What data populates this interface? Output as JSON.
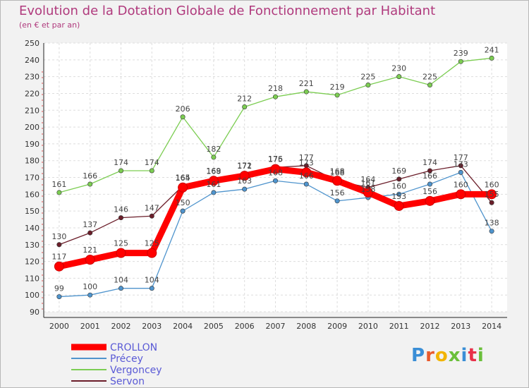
{
  "title": "Evolution de la Dotation Globale de Fonctionnement par Habitant",
  "subtitle": "(en € et par an)",
  "logo": {
    "text": "Proxiti",
    "colors": [
      "#3a8ed6",
      "#e85a2c",
      "#f2b400",
      "#6abf3a",
      "#3a8ed6",
      "#e8304a",
      "#6abf3a"
    ]
  },
  "chart_data": {
    "type": "line",
    "x": [
      "2000",
      "2001",
      "2002",
      "2003",
      "2004",
      "2005",
      "2006",
      "2007",
      "2008",
      "2009",
      "2010",
      "2011",
      "2012",
      "2013",
      "2014"
    ],
    "ylim": [
      90,
      250
    ],
    "yticks": [
      90,
      100,
      110,
      120,
      130,
      140,
      150,
      160,
      170,
      180,
      190,
      200,
      210,
      220,
      230,
      240,
      250
    ],
    "grid": true,
    "legend_position": "bottom-left",
    "series": [
      {
        "name": "CROLLON",
        "color": "#ff0000",
        "values": [
          117,
          121,
          125,
          125,
          164,
          168,
          171,
          175,
          173,
          168,
          161,
          153,
          156,
          160,
          160
        ],
        "labels": [
          "117",
          "121",
          "125",
          "125",
          "164",
          "168",
          "171",
          "175",
          "173",
          "168",
          "161",
          "153",
          "156",
          "160",
          "160"
        ]
      },
      {
        "name": "Précey",
        "color": "#4f94cd",
        "values": [
          99,
          100,
          104,
          104,
          150,
          161,
          163,
          168,
          166,
          156,
          158,
          160,
          166,
          173,
          138
        ],
        "labels": [
          "99",
          "100",
          "104",
          "104",
          "150",
          "161",
          "163",
          "168",
          "166",
          "156",
          "158",
          "160",
          "166",
          "173",
          "138"
        ]
      },
      {
        "name": "Vergoncey",
        "color": "#7ccd52",
        "values": [
          161,
          166,
          174,
          174,
          206,
          182,
          212,
          218,
          221,
          219,
          225,
          230,
          225,
          239,
          241
        ],
        "labels": [
          "161",
          "166",
          "174",
          "174",
          "206",
          "182",
          "212",
          "218",
          "221",
          "219",
          "225",
          "230",
          "225",
          "239",
          "241"
        ]
      },
      {
        "name": "Servon",
        "color": "#6b1e2a",
        "values": [
          130,
          137,
          146,
          147,
          165,
          169,
          172,
          176,
          177,
          168,
          164,
          169,
          174,
          177,
          155
        ],
        "labels": [
          "130",
          "137",
          "146",
          "147",
          "165",
          "169",
          "172",
          "176",
          "177",
          "168",
          "164",
          "169",
          "174",
          "177",
          "155"
        ]
      }
    ]
  }
}
